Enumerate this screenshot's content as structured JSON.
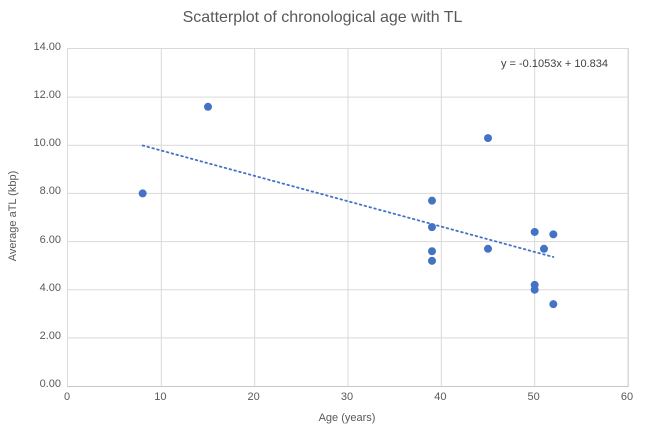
{
  "title": "Scatterplot of chronological age with TL",
  "equation_label": "y = -0.1053x + 10.834",
  "chart_data": {
    "type": "scatter",
    "title": "Scatterplot of chronological age with TL",
    "xlabel": "Age (years)",
    "ylabel": "Average aTL (kbp)",
    "xlim": [
      0,
      60
    ],
    "ylim": [
      0,
      14
    ],
    "grid": true,
    "legend": false,
    "x_ticks": [
      {
        "value": 0,
        "label": "0"
      },
      {
        "value": 10,
        "label": "10"
      },
      {
        "value": 20,
        "label": "20"
      },
      {
        "value": 30,
        "label": "30"
      },
      {
        "value": 40,
        "label": "40"
      },
      {
        "value": 50,
        "label": "50"
      },
      {
        "value": 60,
        "label": "60"
      }
    ],
    "y_ticks": [
      {
        "value": 0,
        "label": "0.00"
      },
      {
        "value": 2,
        "label": "2.00"
      },
      {
        "value": 4,
        "label": "4.00"
      },
      {
        "value": 6,
        "label": "6.00"
      },
      {
        "value": 8,
        "label": "8.00"
      },
      {
        "value": 10,
        "label": "10.00"
      },
      {
        "value": 12,
        "label": "12.00"
      },
      {
        "value": 14,
        "label": "14.00"
      }
    ],
    "points": [
      [
        8,
        8.0
      ],
      [
        15,
        11.6
      ],
      [
        39,
        7.7
      ],
      [
        39,
        6.6
      ],
      [
        39,
        5.6
      ],
      [
        39,
        5.2
      ],
      [
        45,
        10.3
      ],
      [
        45,
        5.7
      ],
      [
        50,
        6.4
      ],
      [
        50,
        4.2
      ],
      [
        50,
        4.0
      ],
      [
        51,
        5.7
      ],
      [
        52,
        6.3
      ],
      [
        52,
        3.4
      ]
    ],
    "trendline": {
      "type": "linear",
      "style": "dotted",
      "slope": -0.1053,
      "intercept": 10.834,
      "x_start": 8,
      "x_end": 52,
      "equation": "y = -0.1053x + 10.834"
    },
    "colors": {
      "point": "#4472C4",
      "trendline": "#4472C4",
      "gridline": "#D9D9D9",
      "axis_text": "#595959",
      "title_text": "#595959"
    }
  }
}
